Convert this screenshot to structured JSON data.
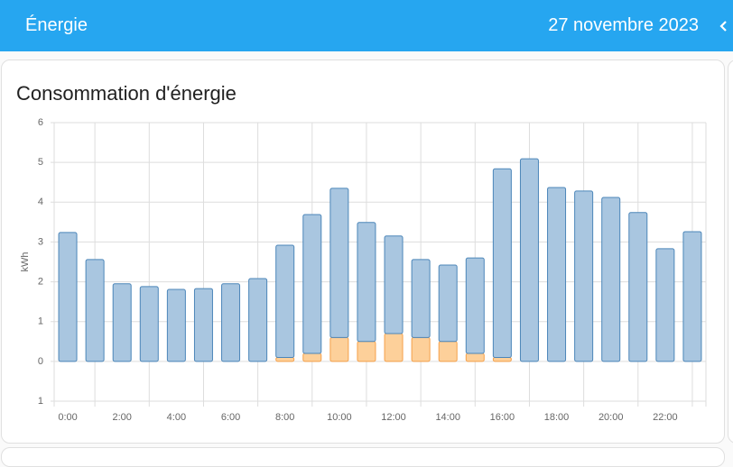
{
  "header": {
    "title": "Énergie",
    "date": "27 novembre 2023"
  },
  "card": {
    "title": "Consommation d'énergie"
  },
  "chart_data": {
    "type": "bar",
    "stacked": true,
    "y_label": "kWh",
    "categories": [
      "0:00",
      null,
      "2:00",
      null,
      "4:00",
      null,
      "6:00",
      null,
      "8:00",
      null,
      "10:00",
      null,
      "12:00",
      null,
      "14:00",
      null,
      "16:00",
      null,
      "18:00",
      null,
      "20:00",
      null,
      "22:00",
      null
    ],
    "series": [
      {
        "color": "#f5a04a",
        "fill": "#fdd09a",
        "values": [
          0,
          0,
          0,
          0,
          0,
          0,
          0,
          0,
          0.1,
          0.2,
          0.6,
          0.5,
          0.7,
          0.6,
          0.5,
          0.2,
          0.1,
          0,
          0,
          0,
          0,
          0,
          0,
          0
        ]
      },
      {
        "color": "#4c86b9",
        "fill": "#a9c6e0",
        "values": [
          3.24,
          2.56,
          1.95,
          1.88,
          1.81,
          1.83,
          1.95,
          2.08,
          2.82,
          3.49,
          3.75,
          2.99,
          2.45,
          1.96,
          1.92,
          2.4,
          4.74,
          5.09,
          4.37,
          4.28,
          4.12,
          3.74,
          2.83,
          3.26
        ]
      }
    ],
    "ylim": [
      -1,
      6
    ],
    "yticks": [
      {
        "value": -1,
        "label": "1"
      },
      0,
      1,
      2,
      3,
      4,
      5,
      6
    ],
    "grid": true
  }
}
